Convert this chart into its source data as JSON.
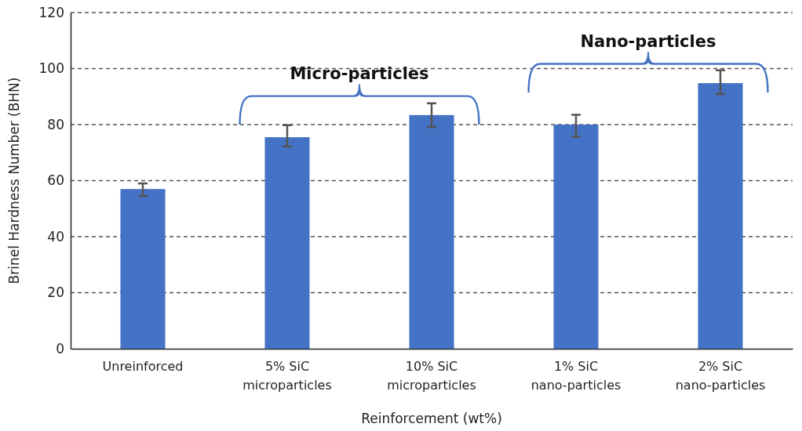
{
  "chart_data": {
    "type": "bar",
    "xlabel": "Reinforcement (wt%)",
    "ylabel": "Brinel Hardness Number (BHN)",
    "categories": [
      "Unreinforced",
      "5% SiC microparticles",
      "10% SiC microparticles",
      "1% SiC nano-particles",
      "2% SiC nano-particles"
    ],
    "values": [
      57,
      75.5,
      83.4,
      80,
      94.8
    ],
    "errors": [
      [
        54.5,
        59
      ],
      [
        72.2,
        79.8
      ],
      [
        79.1,
        87.6
      ],
      [
        75.7,
        83.5
      ],
      [
        90.9,
        99.4
      ]
    ],
    "color": "#4472c4",
    "ylim": [
      0,
      120
    ],
    "yticks": [
      0,
      20,
      40,
      60,
      80,
      100,
      120
    ],
    "grid": "y",
    "annotations": [
      "Micro-particles",
      "Nano-particles"
    ]
  }
}
